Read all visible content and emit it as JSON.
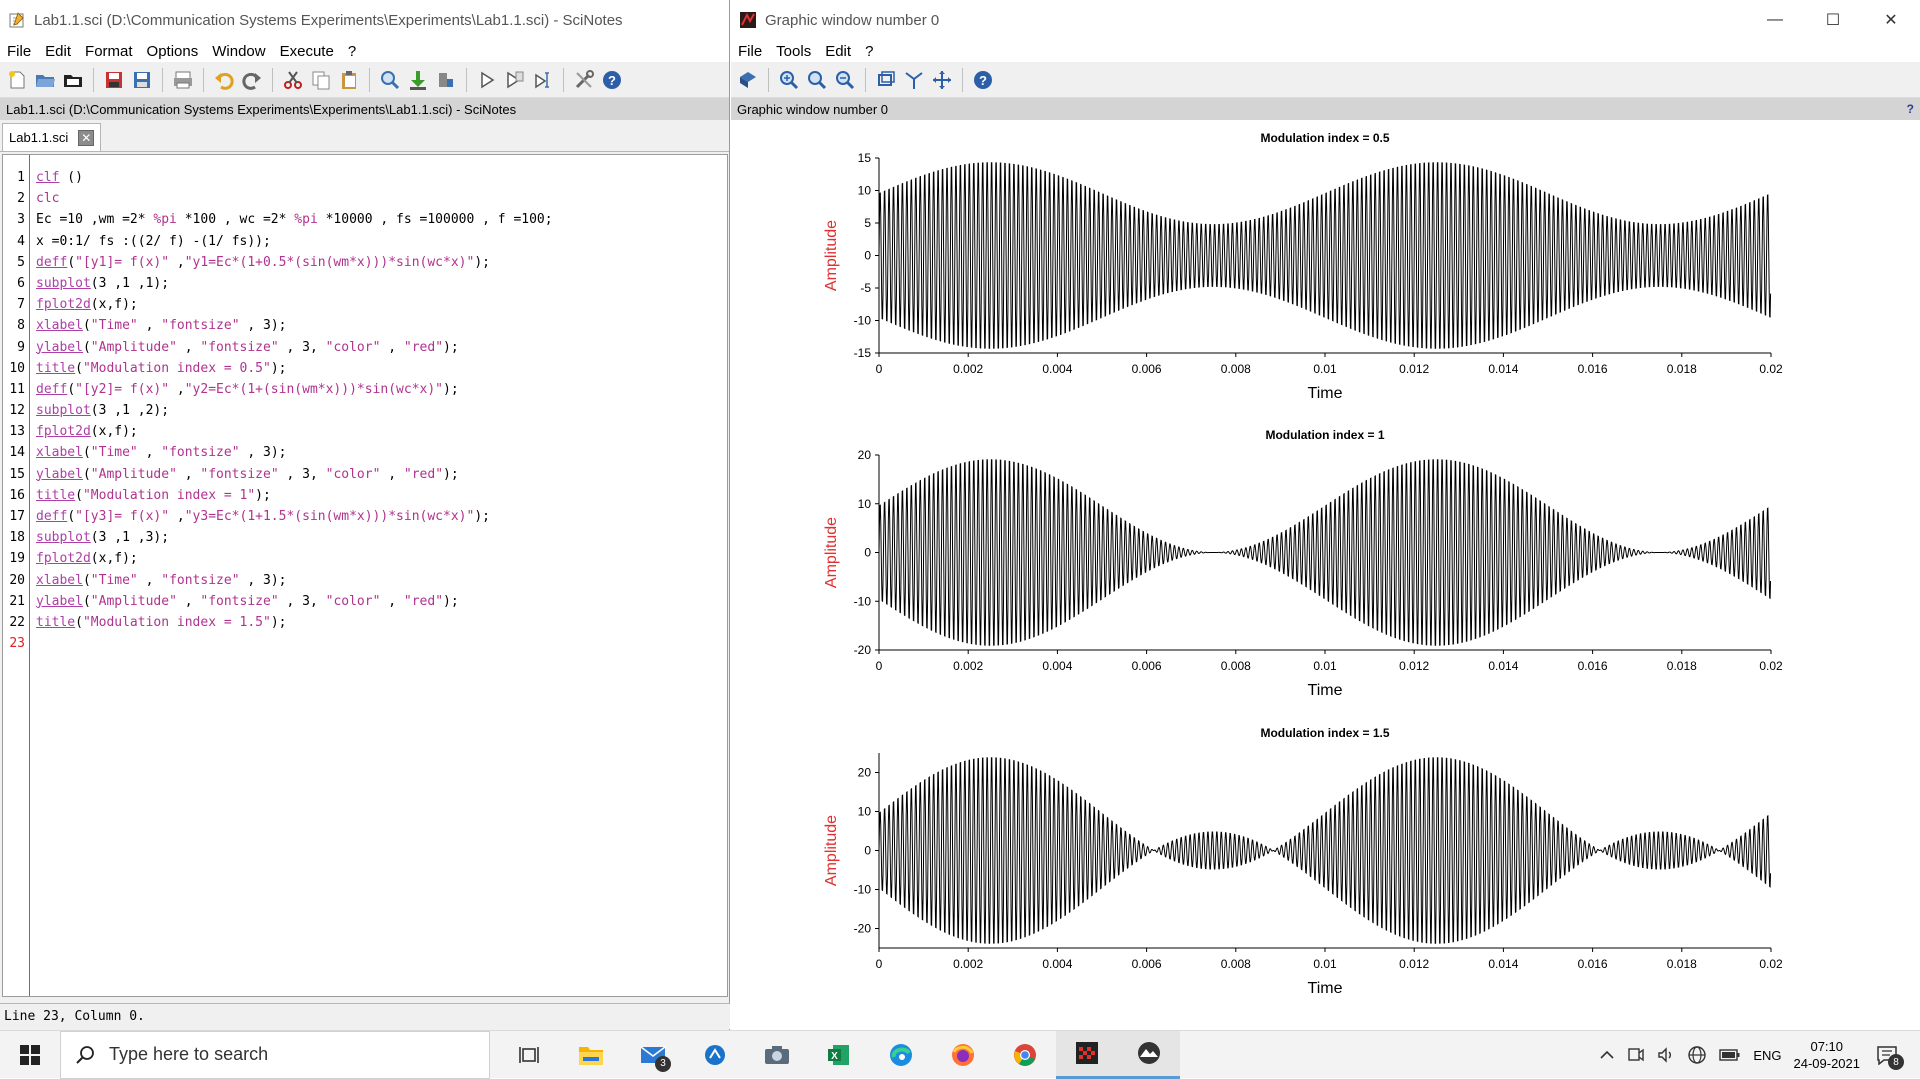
{
  "scinotes": {
    "window_title": "Lab1.1.sci (D:\\Communication Systems Experiments\\Experiments\\Lab1.1.sci) - SciNotes",
    "menu": [
      "File",
      "Edit",
      "Format",
      "Options",
      "Window",
      "Execute",
      "?"
    ],
    "path_label": "Lab1.1.sci (D:\\Communication Systems Experiments\\Experiments\\Lab1.1.sci) - SciNotes",
    "tab_label": "Lab1.1.sci",
    "line_numbers": [
      "1",
      "2",
      "3",
      "4",
      "5",
      "6",
      "7",
      "8",
      "9",
      "10",
      "11",
      "12",
      "13",
      "14",
      "15",
      "16",
      "17",
      "18",
      "19",
      "20",
      "21",
      "22",
      "23"
    ],
    "code_lines": [
      "clf ()",
      "clc",
      "Ec =10 ,wm =2* %pi *100 , wc =2* %pi *10000 , fs =100000 , f =100;",
      "x =0:1/ fs :((2/ f) -(1/ fs));",
      "deff(\"[y1]= f(x)\" ,\"y1=Ec*(1+0.5*(sin(wm*x)))*sin(wc*x)\");",
      "subplot(3 ,1 ,1);",
      "fplot2d(x,f);",
      "xlabel(\"Time\" , \"fontsize\" , 3);",
      "ylabel(\"Amplitude\" , \"fontsize\" , 3, \"color\" , \"red\");",
      "title(\"Modulation index = 0.5\");",
      "deff(\"[y2]= f(x)\" ,\"y2=Ec*(1+(sin(wm*x)))*sin(wc*x)\");",
      "subplot(3 ,1 ,2);",
      "fplot2d(x,f);",
      "xlabel(\"Time\" , \"fontsize\" , 3);",
      "ylabel(\"Amplitude\" , \"fontsize\" , 3, \"color\" , \"red\");",
      "title(\"Modulation index = 1\");",
      "deff(\"[y3]= f(x)\" ,\"y3=Ec*(1+1.5*(sin(wm*x)))*sin(wc*x)\");",
      "subplot(3 ,1 ,3);",
      "fplot2d(x,f);",
      "xlabel(\"Time\" , \"fontsize\" , 3);",
      "ylabel(\"Amplitude\" , \"fontsize\" , 3, \"color\" , \"red\");",
      "title(\"Modulation index = 1.5\");",
      ""
    ],
    "current_line": 23,
    "status_text": "Line 23, Column 0."
  },
  "graphic": {
    "window_title": "Graphic window number 0",
    "menu": [
      "File",
      "Tools",
      "Edit",
      "?"
    ],
    "path_label": "Graphic window number 0",
    "help_mark": "?"
  },
  "chart_data": [
    {
      "type": "line",
      "title": "Modulation index = 0.5",
      "xlabel": "Time",
      "ylabel": "Amplitude",
      "ylabel_color": "#e03030",
      "xlim": [
        0,
        0.02
      ],
      "ylim": [
        -15,
        15
      ],
      "x_ticks": [
        "0",
        "0.002",
        "0.004",
        "0.006",
        "0.008",
        "0.01",
        "0.012",
        "0.014",
        "0.016",
        "0.018",
        "0.02"
      ],
      "y_ticks": [
        "-15",
        "-10",
        "-5",
        "0",
        "5",
        "10",
        "15"
      ],
      "y_tick_values": [
        -15,
        -10,
        -5,
        0,
        5,
        10,
        15
      ],
      "series": [
        {
          "Ec": 10,
          "m": 0.5,
          "fm": 100,
          "fc": 10000,
          "fs": 100000
        }
      ],
      "grid": false
    },
    {
      "type": "line",
      "title": "Modulation index = 1",
      "xlabel": "Time",
      "ylabel": "Amplitude",
      "ylabel_color": "#e03030",
      "xlim": [
        0,
        0.02
      ],
      "ylim": [
        -20,
        20
      ],
      "x_ticks": [
        "0",
        "0.002",
        "0.004",
        "0.006",
        "0.008",
        "0.01",
        "0.012",
        "0.014",
        "0.016",
        "0.018",
        "0.02"
      ],
      "y_ticks": [
        "-20",
        "-10",
        "0",
        "10",
        "20"
      ],
      "y_tick_values": [
        -20,
        -10,
        0,
        10,
        20
      ],
      "series": [
        {
          "Ec": 10,
          "m": 1.0,
          "fm": 100,
          "fc": 10000,
          "fs": 100000
        }
      ],
      "grid": false
    },
    {
      "type": "line",
      "title": "Modulation index = 1.5",
      "xlabel": "Time",
      "ylabel": "Amplitude",
      "ylabel_color": "#e03030",
      "xlim": [
        0,
        0.02
      ],
      "ylim": [
        -25,
        25
      ],
      "x_ticks": [
        "0",
        "0.002",
        "0.004",
        "0.006",
        "0.008",
        "0.01",
        "0.012",
        "0.014",
        "0.016",
        "0.018",
        "0.02"
      ],
      "y_ticks": [
        "-20",
        "-10",
        "0",
        "10",
        "20"
      ],
      "y_tick_values": [
        -20,
        -10,
        0,
        10,
        20
      ],
      "series": [
        {
          "Ec": 10,
          "m": 1.5,
          "fm": 100,
          "fc": 10000,
          "fs": 100000
        }
      ],
      "grid": false
    }
  ],
  "taskbar": {
    "search_placeholder": "Type here to search",
    "mail_badge": "3",
    "language": "ENG",
    "time": "07:10",
    "date": "24-09-2021",
    "notification_badge": "8"
  }
}
